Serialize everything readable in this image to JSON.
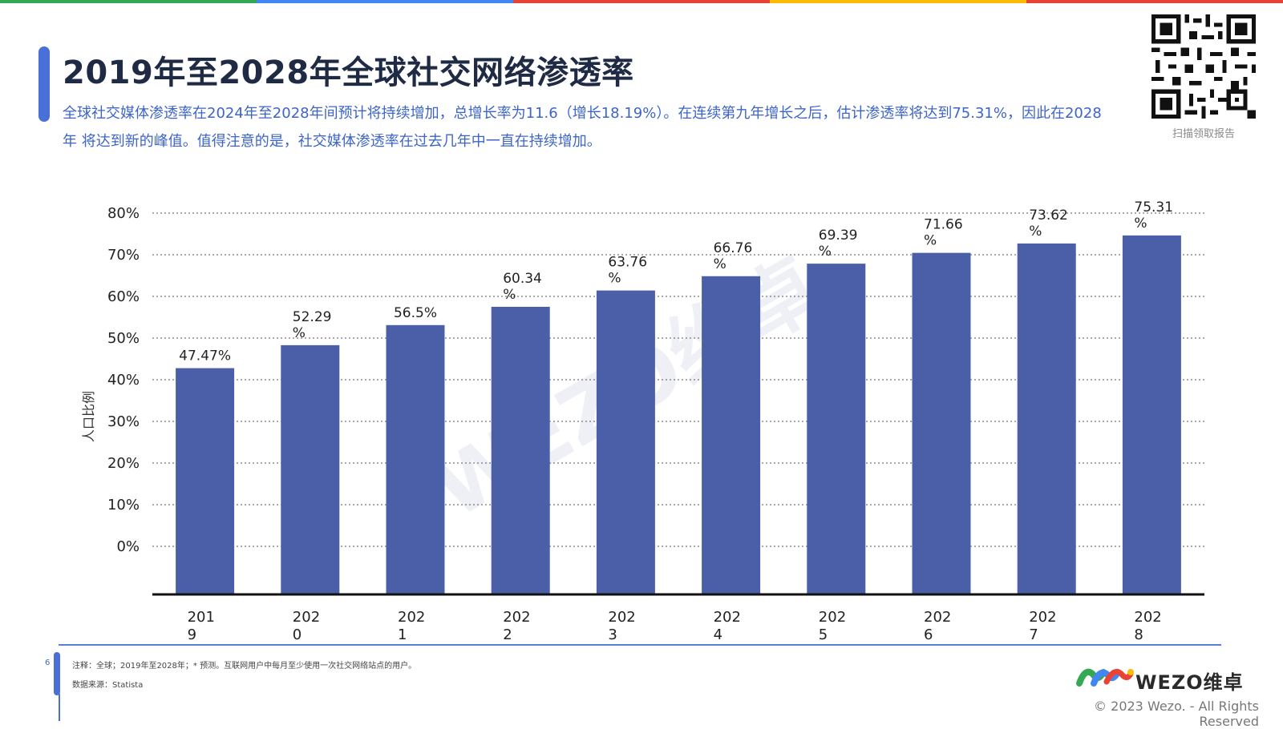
{
  "header": {
    "title": "2019年至2028年全球社交网络渗透率",
    "description": "全球社交媒体渗透率在2024年至2028年间预计将持续增加，总增长率为11.6（增长18.19%）。在连续第九年增长之后，估计渗透率将达到75.31%，因此在2028年 将达到新的峰值。值得注意的是，社交媒体渗透率在过去几年中一直在持续增加。"
  },
  "qr": {
    "caption": "扫描领取报告"
  },
  "chart_data": {
    "type": "bar",
    "categories": [
      "2019",
      "2020",
      "2021",
      "2022",
      "2023",
      "2024",
      "2025",
      "2026",
      "2027",
      "2028"
    ],
    "category_labels": [
      [
        "201",
        "9"
      ],
      [
        "202",
        "0"
      ],
      [
        "202",
        "1"
      ],
      [
        "202",
        "2"
      ],
      [
        "202",
        "3"
      ],
      [
        "202",
        "4"
      ],
      [
        "202",
        "5"
      ],
      [
        "202",
        "6"
      ],
      [
        "202",
        "7"
      ],
      [
        "202",
        "8"
      ]
    ],
    "values": [
      47.47,
      52.29,
      56.5,
      60.34,
      63.76,
      66.76,
      69.39,
      71.66,
      73.62,
      75.31
    ],
    "data_labels": [
      [
        "47.47%"
      ],
      [
        "52.29",
        "%"
      ],
      [
        "56.5%"
      ],
      [
        "60.34",
        "%"
      ],
      [
        "63.76",
        "%"
      ],
      [
        "66.76",
        "%"
      ],
      [
        "69.39",
        "%"
      ],
      [
        "71.66",
        "%"
      ],
      [
        "73.62",
        "%"
      ],
      [
        "75.31",
        "%"
      ]
    ],
    "y_ticks": [
      "80%",
      "70%",
      "60%",
      "50%",
      "40%",
      "30%",
      "20%",
      "10%",
      "0%"
    ],
    "ylabel": "人口比例",
    "ylim": [
      0,
      80
    ],
    "grid": true,
    "bar_color": "#4a5fa8",
    "watermark": "WEZO维卓"
  },
  "footer": {
    "page_number": "6",
    "note": "注释：全球；2019年至2028年；* 预测。互联网用户中每月至少使用一次社交网络站点的用户。",
    "source": "数据来源：Statista",
    "logo_text": "WEZO维卓",
    "copyright": "© 2023 Wezo. - All Rights Reserved"
  },
  "colors": {
    "accent_blue": "#4a6fd6",
    "text_blue": "#3d64c9",
    "topbar": [
      "#34a853",
      "#4285f4",
      "#ea4335",
      "#fbbc05",
      "#ea4335"
    ]
  }
}
